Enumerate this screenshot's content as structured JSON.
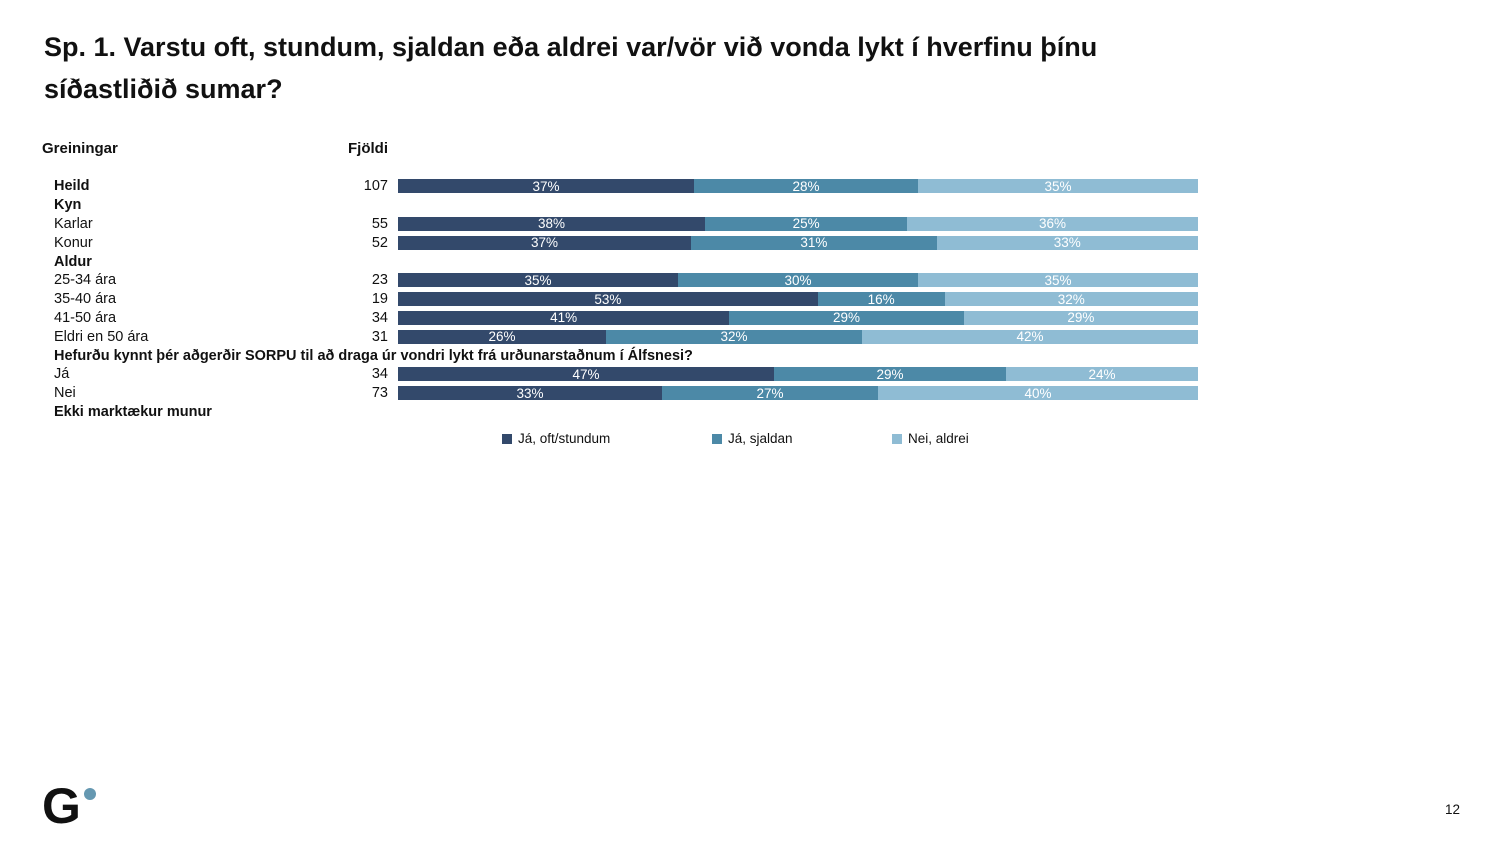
{
  "page": {
    "title_line1": "Sp. 1. Varstu oft, stundum, sjaldan eða aldrei var/vör við vonda lykt í hverfinu þínu",
    "title_line2": "síðastliðið sumar?",
    "page_number": "12",
    "logo_letter": "G",
    "logo_dot_color": "#6598B1"
  },
  "table_headers": {
    "analysis": "Greiningar",
    "count": "Fjöldi"
  },
  "chart_data": {
    "type": "bar",
    "stacked": true,
    "orientation": "horizontal",
    "value_suffix": "%",
    "xlim": [
      0,
      100
    ],
    "grid": false,
    "legend_position": "bottom",
    "series_names": [
      "Já, oft/stundum",
      "Já, sjaldan",
      "Nei, aldrei"
    ],
    "series_colors": [
      "#33496B",
      "#4C89A7",
      "#8FBCD4"
    ],
    "count_column_label": "Fjöldi",
    "rows": [
      {
        "type": "data",
        "label": "Heild",
        "bold": true,
        "count": "107",
        "values": [
          37,
          28,
          35
        ]
      },
      {
        "type": "group",
        "label": "Kyn"
      },
      {
        "type": "data",
        "label": "Karlar",
        "bold": false,
        "count": "55",
        "values": [
          38,
          25,
          36
        ]
      },
      {
        "type": "data",
        "label": "Konur",
        "bold": false,
        "count": "52",
        "values": [
          37,
          31,
          33
        ]
      },
      {
        "type": "group",
        "label": "Aldur"
      },
      {
        "type": "data",
        "label": "25-34 ára",
        "bold": false,
        "count": "23",
        "values": [
          35,
          30,
          35
        ]
      },
      {
        "type": "data",
        "label": "35-40 ára",
        "bold": false,
        "count": "19",
        "values": [
          53,
          16,
          32
        ]
      },
      {
        "type": "data",
        "label": "41-50 ára",
        "bold": false,
        "count": "34",
        "values": [
          41,
          29,
          29
        ]
      },
      {
        "type": "data",
        "label": "Eldri en 50 ára",
        "bold": false,
        "count": "31",
        "values": [
          26,
          32,
          42
        ]
      },
      {
        "type": "group",
        "label": "Hefurðu kynnt þér aðgerðir SORPU til að draga úr vondri lykt frá urðunarstaðnum í Álfsnesi?"
      },
      {
        "type": "data",
        "label": "Já",
        "bold": false,
        "count": "34",
        "values": [
          47,
          29,
          24
        ]
      },
      {
        "type": "data",
        "label": "Nei",
        "bold": false,
        "count": "73",
        "values": [
          33,
          27,
          40
        ]
      },
      {
        "type": "group",
        "label": "Ekki marktækur munur"
      }
    ],
    "legend_x_positions": [
      502,
      712,
      892
    ]
  }
}
